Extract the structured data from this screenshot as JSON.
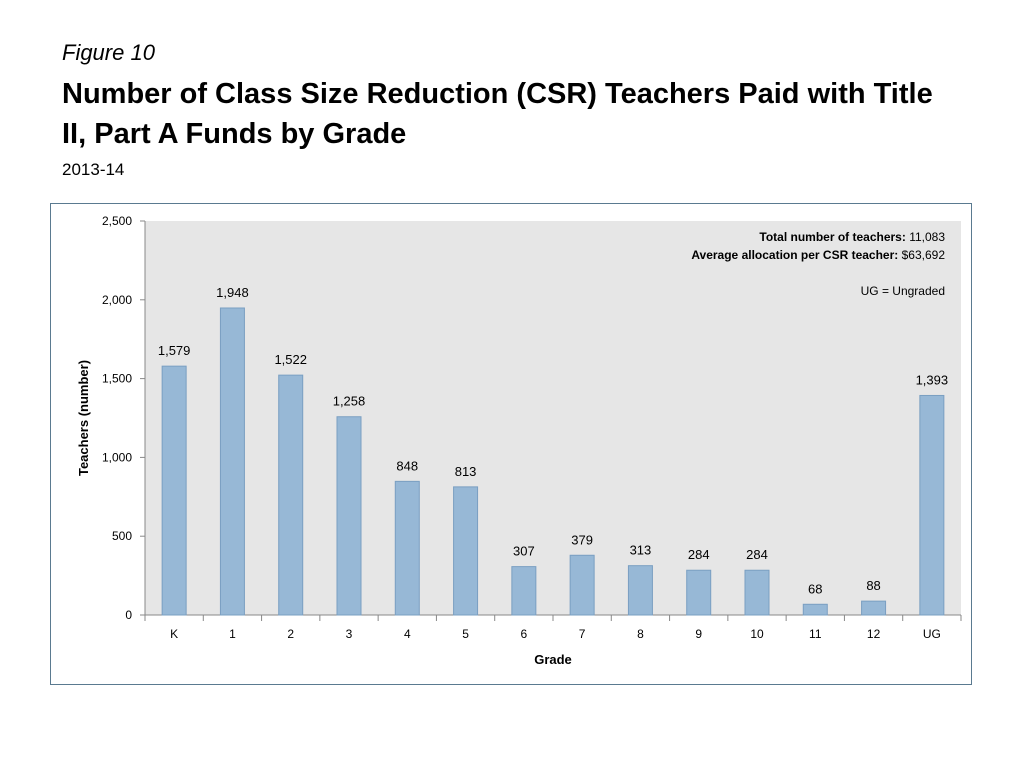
{
  "header": {
    "figure_label": "Figure 10",
    "title": "Number of Class Size Reduction (CSR) Teachers Paid with Title II, Part A Funds by Grade",
    "subtitle": "2013-14"
  },
  "colors": {
    "bar": "#97b8d6",
    "bar_stroke": "#7a9fc2",
    "plot_bg": "#e6e6e6",
    "frame": "#5a7a90"
  },
  "chart_data": {
    "type": "bar",
    "categories": [
      "K",
      "1",
      "2",
      "3",
      "4",
      "5",
      "6",
      "7",
      "8",
      "9",
      "10",
      "11",
      "12",
      "UG"
    ],
    "values": [
      1579,
      1948,
      1522,
      1258,
      848,
      813,
      307,
      379,
      313,
      284,
      284,
      68,
      88,
      1393
    ],
    "value_labels": [
      "1,579",
      "1,948",
      "1,522",
      "1,258",
      "848",
      "813",
      "307",
      "379",
      "313",
      "284",
      "284",
      "68",
      "88",
      "1,393"
    ],
    "xlabel": "Grade",
    "ylabel": "Teachers (number)",
    "ylim": [
      0,
      2500
    ],
    "yticks": [
      0,
      500,
      1000,
      1500,
      2000,
      2500
    ],
    "ytick_labels": [
      "0",
      "500",
      "1,000",
      "1,500",
      "2,000",
      "2,500"
    ],
    "grid": false,
    "annotations": [
      {
        "label": "Total number of teachers:",
        "value": "11,083"
      },
      {
        "label": "Average allocation per CSR teacher:",
        "value": "$63,692"
      },
      {
        "label": "",
        "value": "UG = Ungraded"
      }
    ]
  }
}
